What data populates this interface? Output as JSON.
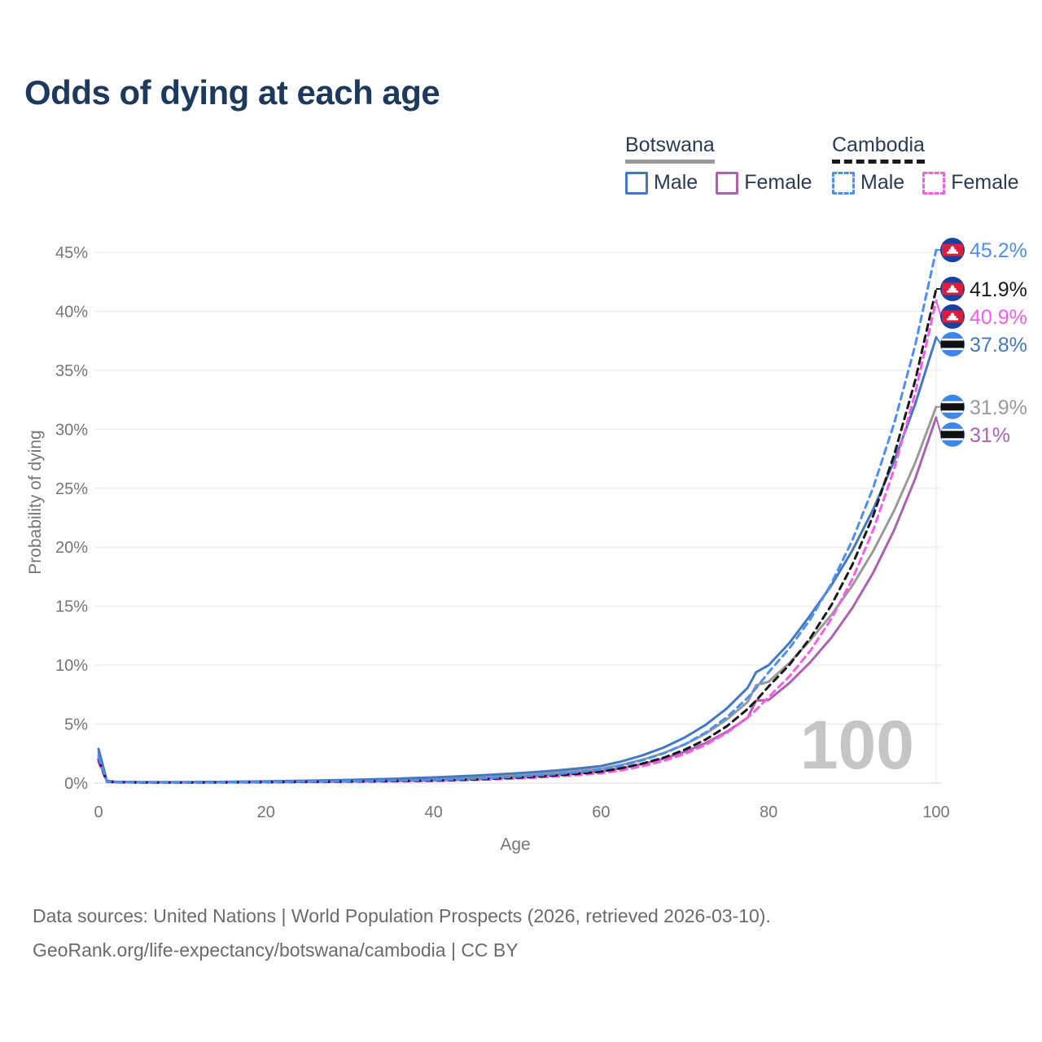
{
  "title": "Odds of dying at each age",
  "legend": {
    "groups": [
      {
        "label": "Botswana",
        "style": "solid",
        "underline_color": "#9a9a9a",
        "items": [
          {
            "label": "Male",
            "color": "#4478c0",
            "dashed": false
          },
          {
            "label": "Female",
            "color": "#ac62b0",
            "dashed": false
          }
        ]
      },
      {
        "label": "Cambodia",
        "style": "dashed",
        "underline_color": "#1a1a1a",
        "items": [
          {
            "label": "Male",
            "color": "#4b8ff5",
            "dashed": true
          },
          {
            "label": "Female",
            "color": "#f75bee",
            "dashed": true
          }
        ]
      }
    ]
  },
  "chart_data": {
    "type": "line",
    "title": "Odds of dying at each age",
    "xlabel": "Age",
    "ylabel": "Probability of dying",
    "xlim": [
      0,
      100
    ],
    "ylim": [
      0,
      45
    ],
    "x_ticks": [
      0,
      20,
      40,
      60,
      80,
      100
    ],
    "y_ticks": [
      0,
      5,
      10,
      15,
      20,
      25,
      30,
      35,
      40,
      45
    ],
    "y_tick_suffix": "%",
    "grid": "horizontal",
    "legend_position": "top-right",
    "hover_age": "100",
    "x": [
      0,
      1,
      2,
      5,
      10,
      15,
      20,
      25,
      30,
      35,
      40,
      45,
      50,
      52.5,
      55,
      57.5,
      60,
      62.5,
      65,
      67.5,
      70,
      72.5,
      75,
      77.5,
      78.5,
      80,
      82.5,
      85,
      87.5,
      90,
      92.5,
      95,
      97.5,
      100
    ],
    "series": [
      {
        "name": "Cambodia Male",
        "country": "Cambodia",
        "sex": "Male",
        "color": "#4b8ff5",
        "dashed": true,
        "flag": "cambodia",
        "end_label": "45.2%",
        "end_value": 45.2,
        "values": [
          2.2,
          0.15,
          0.09,
          0.06,
          0.055,
          0.07,
          0.1,
          0.13,
          0.16,
          0.205,
          0.26,
          0.38,
          0.55,
          0.66,
          0.79,
          0.955,
          1.15,
          1.5,
          1.95,
          2.53,
          3.3,
          4.29,
          5.58,
          7.25,
          8.05,
          9.4,
          11.44,
          13.92,
          16.94,
          20.61,
          25.08,
          30.52,
          37.14,
          45.2
        ]
      },
      {
        "name": "Cambodia Both sexes",
        "country": "Cambodia",
        "sex": "All",
        "color": "#1a1a1a",
        "dashed": true,
        "flag": "cambodia",
        "end_label": "41.9%",
        "end_value": 41.9,
        "values": [
          2.0,
          0.13,
          0.08,
          0.055,
          0.05,
          0.065,
          0.085,
          0.108,
          0.137,
          0.173,
          0.22,
          0.32,
          0.465,
          0.56,
          0.675,
          0.815,
          0.98,
          1.28,
          1.67,
          2.17,
          2.84,
          3.7,
          4.82,
          6.29,
          7.0,
          8.2,
          10.05,
          12.33,
          15.11,
          18.53,
          22.71,
          27.85,
          34.14,
          41.9
        ]
      },
      {
        "name": "Cambodia Female",
        "country": "Cambodia",
        "sex": "Female",
        "color": "#f75bee",
        "dashed": true,
        "flag": "cambodia",
        "end_label": "40.9%",
        "end_value": 40.9,
        "values": [
          1.8,
          0.12,
          0.07,
          0.05,
          0.045,
          0.055,
          0.07,
          0.089,
          0.112,
          0.142,
          0.18,
          0.265,
          0.39,
          0.473,
          0.573,
          0.694,
          0.84,
          1.1,
          1.44,
          1.89,
          2.48,
          3.25,
          4.26,
          5.58,
          6.21,
          7.3,
          9.06,
          11.24,
          13.95,
          17.31,
          21.48,
          26.66,
          33.08,
          40.9
        ]
      },
      {
        "name": "Botswana Male",
        "country": "Botswana",
        "sex": "Male",
        "color": "#4478c0",
        "dashed": false,
        "flag": "botswana",
        "end_label": "37.8%",
        "end_value": 37.8,
        "values": [
          2.9,
          0.2,
          0.12,
          0.085,
          0.08,
          0.11,
          0.16,
          0.21,
          0.277,
          0.365,
          0.48,
          0.633,
          0.834,
          0.957,
          1.1,
          1.26,
          1.45,
          1.85,
          2.37,
          3.03,
          3.87,
          4.95,
          6.33,
          8.09,
          9.4,
          10.0,
          11.9,
          14.26,
          16.78,
          19.74,
          23.23,
          27.33,
          32.15,
          37.8
        ]
      },
      {
        "name": "Botswana Both sexes",
        "country": "Botswana",
        "sex": "All",
        "color": "#9a9a9a",
        "dashed": false,
        "flag": "botswana",
        "end_label": "31.9%",
        "end_value": 31.9,
        "values": [
          2.65,
          0.18,
          0.11,
          0.08,
          0.072,
          0.1,
          0.13,
          0.171,
          0.225,
          0.296,
          0.39,
          0.519,
          0.69,
          0.795,
          0.917,
          1.058,
          1.22,
          1.563,
          2.0,
          2.56,
          3.28,
          4.2,
          5.38,
          6.89,
          8.3,
          8.6,
          10.2,
          12.14,
          14.27,
          16.76,
          19.69,
          23.13,
          27.17,
          31.9
        ]
      },
      {
        "name": "Botswana Female",
        "country": "Botswana",
        "sex": "Female",
        "color": "#ac62b0",
        "dashed": false,
        "flag": "botswana",
        "end_label": "31%",
        "end_value": 31.0,
        "values": [
          2.4,
          0.16,
          0.1,
          0.07,
          0.062,
          0.085,
          0.11,
          0.143,
          0.185,
          0.239,
          0.31,
          0.415,
          0.556,
          0.644,
          0.745,
          0.863,
          1.0,
          1.277,
          1.632,
          2.085,
          2.663,
          3.4,
          4.35,
          5.55,
          7.0,
          7.05,
          8.5,
          10.27,
          12.35,
          14.85,
          17.86,
          21.48,
          25.83,
          31.0
        ]
      }
    ]
  },
  "flags": {
    "botswana": {
      "blue": "#3d87ec",
      "black": "#111111",
      "white": "#ffffff"
    },
    "cambodia": {
      "blue": "#1742a0",
      "red": "#e01c3c",
      "white": "#ffffff"
    }
  },
  "footer": {
    "line1": "Data sources: United Nations | World Population Prospects (2026, retrieved 2026-03-10).",
    "line2": "GeoRank.org/life-expectancy/botswana/cambodia | CC BY"
  }
}
